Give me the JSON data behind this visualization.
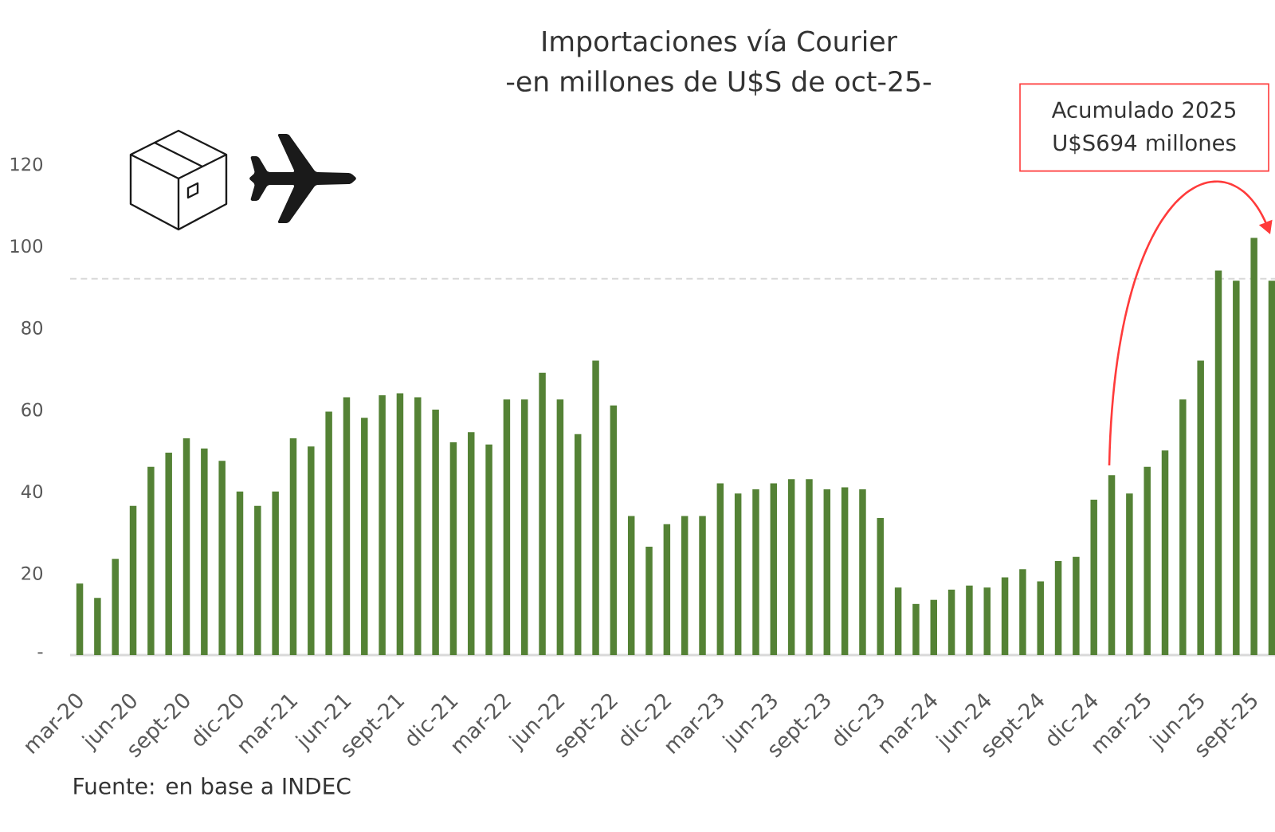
{
  "chart_data": {
    "type": "bar",
    "title": "Importaciones vía Courier",
    "subtitle": "-en millones de U$S de oct-25-",
    "annotations": [
      "Acumulado 2025 U$S694 millones",
      "Fuente: en base a INDEC"
    ],
    "categories": [
      "mar-20",
      null,
      null,
      "jun-20",
      null,
      null,
      "sept-20",
      null,
      null,
      "dic-20",
      null,
      null,
      "mar-21",
      null,
      null,
      "jun-21",
      null,
      null,
      "sept-21",
      null,
      null,
      "dic-21",
      null,
      null,
      "mar-22",
      null,
      null,
      "jun-22",
      null,
      null,
      "sept-22",
      null,
      null,
      "dic-22",
      null,
      null,
      "mar-23",
      null,
      null,
      "jun-23",
      null,
      null,
      "sept-23",
      null,
      null,
      "dic-23",
      null,
      null,
      "mar-24",
      null,
      null,
      "jun-24",
      null,
      null,
      "sept-24",
      null,
      null,
      "dic-24",
      null,
      null,
      "mar-25",
      null,
      null,
      "jun-25",
      null,
      null,
      "sept-25",
      null
    ],
    "values": [
      17.5,
      14,
      23.5,
      36.5,
      46,
      49.5,
      53,
      50.5,
      47.5,
      40,
      36.5,
      40,
      53,
      51,
      59.5,
      63,
      58,
      63.5,
      64,
      63,
      60,
      52,
      54.5,
      51.5,
      62.5,
      62.5,
      69,
      62.5,
      54,
      72,
      61,
      34,
      26.5,
      32,
      34,
      34,
      42,
      39.5,
      40.5,
      42,
      43,
      43,
      40.5,
      41,
      40.5,
      33.5,
      16.5,
      12.5,
      13.5,
      16,
      17,
      16.5,
      19,
      21,
      18,
      23,
      24,
      38,
      44,
      39.5,
      46,
      50,
      62.5,
      72,
      94,
      91.5,
      102,
      91.5
    ],
    "color": "#548235",
    "ylim": [
      0,
      120
    ],
    "yticks": [
      {
        "value": 0,
        "label": "-"
      },
      20,
      40,
      60,
      80,
      100,
      120
    ],
    "ref_lines": [
      {
        "axis": "y",
        "value": 92,
        "color": "#d9d9d9",
        "line_style": "dashed"
      }
    ]
  }
}
